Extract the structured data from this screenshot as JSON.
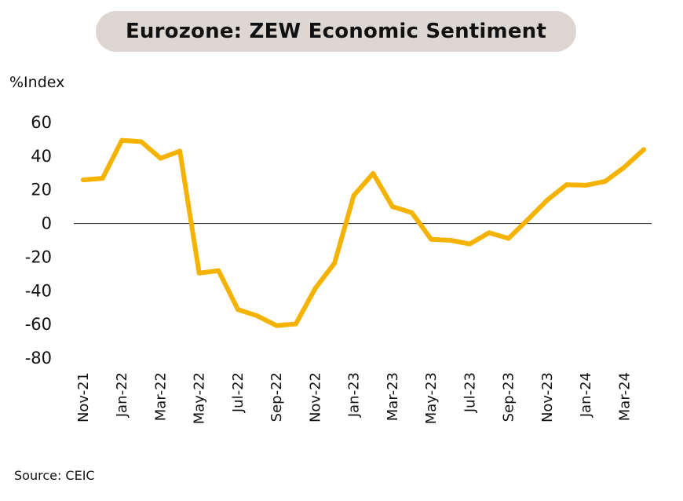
{
  "colors": {
    "title_bg": "#ddd7d4",
    "series": "#f5b300",
    "zero_line": "#333333"
  },
  "title": "Eurozone: ZEW Economic Sentiment",
  "unit_label": "%Index",
  "source": "Source: CEIC",
  "chart_data": {
    "type": "line",
    "title": "Eurozone: ZEW Economic Sentiment",
    "ylabel": "%Index",
    "xlabel": "",
    "ylim": [
      -80,
      60
    ],
    "yticks": [
      60,
      40,
      20,
      0,
      -20,
      -40,
      -60,
      -80
    ],
    "ytick_labels": [
      "60",
      "40",
      "20",
      "0",
      "-20",
      "-40",
      "-60",
      "-80"
    ],
    "x": [
      "Nov-21",
      "Dec-21",
      "Jan-22",
      "Feb-22",
      "Mar-22",
      "Apr-22",
      "May-22",
      "Jun-22",
      "Jul-22",
      "Aug-22",
      "Sep-22",
      "Oct-22",
      "Nov-22",
      "Dec-22",
      "Jan-23",
      "Feb-23",
      "Mar-23",
      "Apr-23",
      "May-23",
      "Jun-23",
      "Jul-23",
      "Aug-23",
      "Sep-23",
      "Oct-23",
      "Nov-23",
      "Dec-23",
      "Jan-24",
      "Feb-24",
      "Mar-24",
      "Apr-24"
    ],
    "xtick_labels": [
      "Nov-21",
      "Jan-22",
      "Mar-22",
      "May-22",
      "Jul-22",
      "Sep-22",
      "Nov-22",
      "Jan-23",
      "Mar-23",
      "May-23",
      "Jul-23",
      "Sep-23",
      "Nov-23",
      "Jan-24",
      "Mar-24"
    ],
    "series": [
      {
        "name": "ZEW Economic Sentiment",
        "values": [
          25.9,
          26.8,
          49.4,
          48.6,
          38.7,
          43.0,
          -29.5,
          -28.0,
          -51.1,
          -54.9,
          -60.7,
          -59.7,
          -38.7,
          -23.6,
          16.7,
          29.7,
          10.0,
          6.4,
          -9.4,
          -10.0,
          -12.2,
          -5.5,
          -8.9,
          2.3,
          13.8,
          23.0,
          22.7,
          25.0,
          33.5,
          43.9
        ]
      }
    ],
    "zero_line": true,
    "grid": false
  }
}
